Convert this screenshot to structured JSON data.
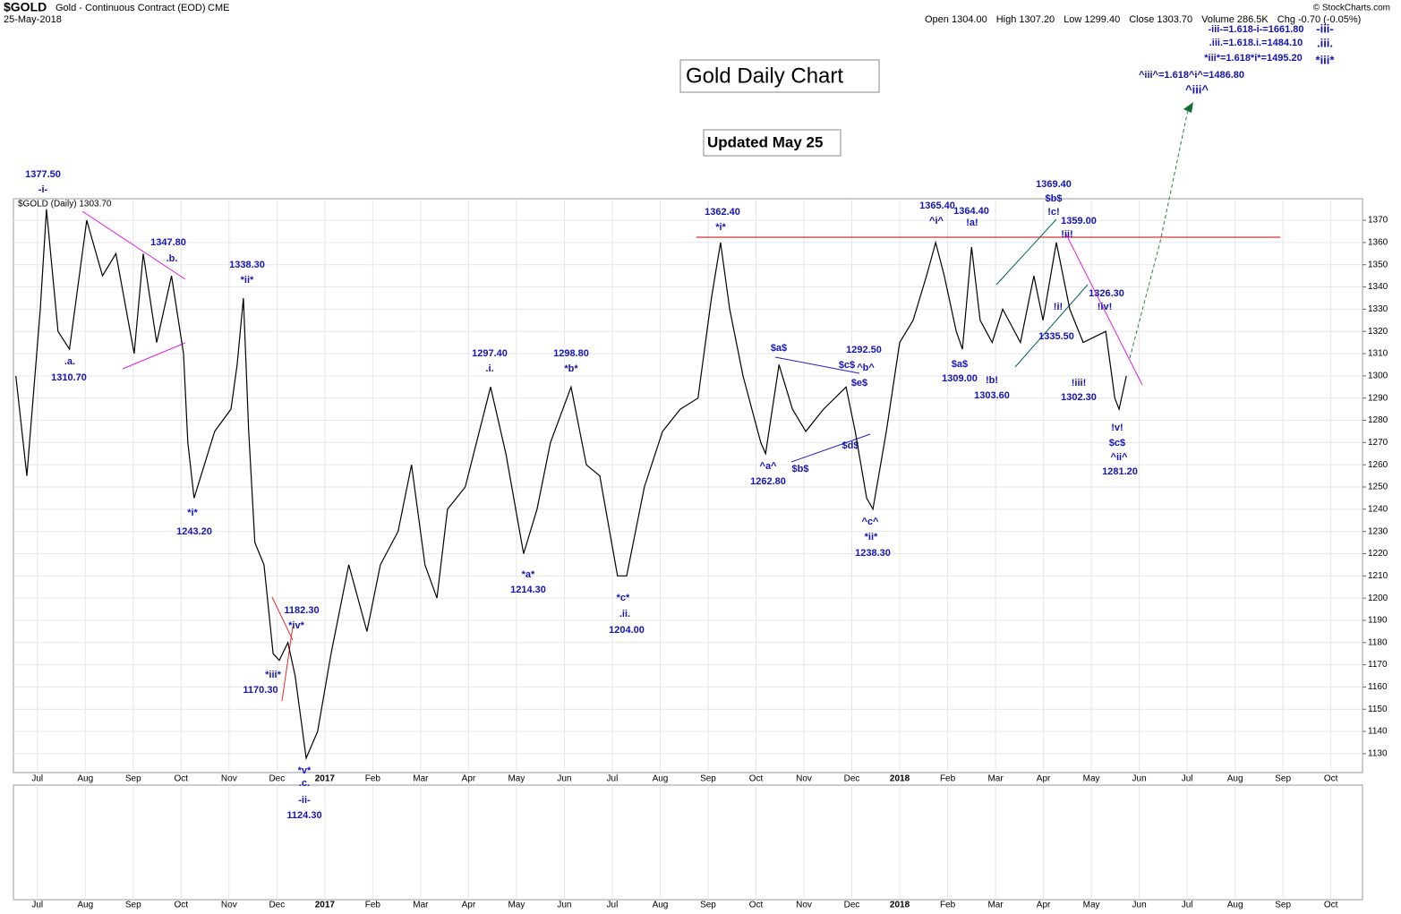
{
  "symbol": "$GOLD",
  "description": "Gold - Continuous Contract (EOD)",
  "exchange": "CME",
  "date": "25-May-2018",
  "quote": [
    "Open 1304.00",
    "High 1307.20",
    "Low 1299.40",
    "Close 1303.70",
    "Volume 286.5K",
    "Chg -0.70 (-0.05%)"
  ],
  "credit": "© StockCharts.com",
  "chart_data": {
    "type": "line",
    "title": "Gold Daily Chart",
    "subtitle": "Updated May 25",
    "legend": "$GOLD (Daily) 1303.70",
    "color": "#000000",
    "grid": true,
    "x": [
      -0.45,
      -0.22,
      0.06,
      0.19,
      0.43,
      0.67,
      1.03,
      1.36,
      1.64,
      2.02,
      2.21,
      2.49,
      2.8,
      3.05,
      3.14,
      3.27,
      3.7,
      4.04,
      4.17,
      4.3,
      4.41,
      4.54,
      4.73,
      4.92,
      5.05,
      5.23,
      5.38,
      5.61,
      5.85,
      6.13,
      6.5,
      6.88,
      7.16,
      7.53,
      7.81,
      8.09,
      8.34,
      8.56,
      8.93,
      9.46,
      9.78,
      10.15,
      10.43,
      10.71,
      11.14,
      11.46,
      11.74,
      12.11,
      12.3,
      12.67,
      13.05,
      13.42,
      13.79,
      14.07,
      14.26,
      14.45,
      14.73,
      15.1,
      15.2,
      15.48,
      15.76,
      16.04,
      16.41,
      16.88,
      17.07,
      17.31,
      17.44,
      17.72,
      18.0,
      18.28,
      18.56,
      18.75,
      18.93,
      19.18,
      19.31,
      19.5,
      19.68,
      19.93,
      20.15,
      20.52,
      20.8,
      20.99,
      21.27,
      21.55,
      21.83,
      22.11,
      22.3,
      22.49,
      22.58,
      22.73
    ],
    "values": [
      1300,
      1255,
      1330,
      1375,
      1320,
      1312,
      1370,
      1345,
      1355,
      1310,
      1355,
      1315,
      1345,
      1310,
      1270,
      1245,
      1275,
      1285,
      1305,
      1335,
      1275,
      1225,
      1215,
      1175,
      1172,
      1180,
      1165,
      1128,
      1140,
      1175,
      1215,
      1185,
      1215,
      1230,
      1260,
      1215,
      1200,
      1240,
      1250,
      1295,
      1265,
      1220,
      1240,
      1270,
      1295,
      1260,
      1255,
      1210,
      1210,
      1250,
      1275,
      1285,
      1290,
      1335,
      1360,
      1330,
      1300,
      1270,
      1265,
      1305,
      1285,
      1275,
      1285,
      1295,
      1275,
      1245,
      1240,
      1275,
      1315,
      1325,
      1345,
      1360,
      1345,
      1320,
      1312,
      1358,
      1325,
      1315,
      1330,
      1315,
      1345,
      1325,
      1360,
      1330,
      1315,
      1318,
      1320,
      1290,
      1285,
      1300
    ],
    "xlim": [
      -0.5,
      27.66
    ],
    "xticks": [
      {
        "value": 0,
        "label": "Jul"
      },
      {
        "value": 1,
        "label": "Aug"
      },
      {
        "value": 2,
        "label": "Sep"
      },
      {
        "value": 3,
        "label": "Oct"
      },
      {
        "value": 4,
        "label": "Nov"
      },
      {
        "value": 5,
        "label": "Dec"
      },
      {
        "value": 6,
        "label": "2017"
      },
      {
        "value": 7,
        "label": "Feb"
      },
      {
        "value": 8,
        "label": "Mar"
      },
      {
        "value": 9,
        "label": "Apr"
      },
      {
        "value": 10,
        "label": "May"
      },
      {
        "value": 11,
        "label": "Jun"
      },
      {
        "value": 12,
        "label": "Jul"
      },
      {
        "value": 13,
        "label": "Aug"
      },
      {
        "value": 14,
        "label": "Sep"
      },
      {
        "value": 15,
        "label": "Oct"
      },
      {
        "value": 16,
        "label": "Nov"
      },
      {
        "value": 17,
        "label": "Dec"
      },
      {
        "value": 18,
        "label": "2018"
      },
      {
        "value": 19,
        "label": "Feb"
      },
      {
        "value": 20,
        "label": "Mar"
      },
      {
        "value": 21,
        "label": "Apr"
      },
      {
        "value": 22,
        "label": "May"
      },
      {
        "value": 23,
        "label": "Jun"
      },
      {
        "value": 24,
        "label": "Jul"
      },
      {
        "value": 25,
        "label": "Aug"
      },
      {
        "value": 26,
        "label": "Sep"
      },
      {
        "value": 27,
        "label": "Oct"
      }
    ],
    "ylim": [
      1121.5,
      1379.7
    ],
    "yticks": [
      1130,
      1140,
      1150,
      1160,
      1170,
      1180,
      1190,
      1200,
      1210,
      1220,
      1230,
      1240,
      1250,
      1260,
      1270,
      1280,
      1290,
      1300,
      1310,
      1320,
      1330,
      1340,
      1350,
      1360,
      1370
    ],
    "annotations": [
      "1377.50",
      "-i-",
      ".a.",
      "1310.70",
      "1347.80",
      ".b.",
      "1338.30",
      "*ii*",
      "*i*",
      "1243.20",
      "1182.30",
      "*iv*",
      "*iii*",
      "1170.30",
      "*v*",
      ".c.",
      "-ii-",
      "1124.30",
      "1297.40",
      ".i.",
      "1298.80",
      "*b*",
      "*a*",
      "1214.30",
      "*c*",
      ".ii.",
      "1204.00",
      "1362.40",
      "*i*",
      "$a$",
      "^a^",
      "1262.80",
      "$b$",
      "1292.50",
      "$c$",
      "^b^",
      "$e$",
      "$d$",
      "^c^",
      "*ii*",
      "1238.30",
      "1365.40",
      "^i^",
      "1364.40",
      "!a!",
      "$a$",
      "1309.00",
      "!b!",
      "1303.60",
      "1369.40",
      "$b$",
      "!c!",
      "1359.00",
      "!ii!",
      "!i!",
      "1335.50",
      "1326.30",
      "!iv!",
      "!iii!",
      "1302.30",
      "!v!",
      "$c$",
      "^ii^",
      "1281.20",
      "^iii^=1.618^i^=1486.80",
      "^iii^",
      "-iii-=1.618-i-=1661.80",
      ".iii.=1.618.i.=1484.10",
      "*iii*=1.618*i*=1495.20",
      "-iii-",
      ".iii.",
      "*iii*"
    ]
  }
}
